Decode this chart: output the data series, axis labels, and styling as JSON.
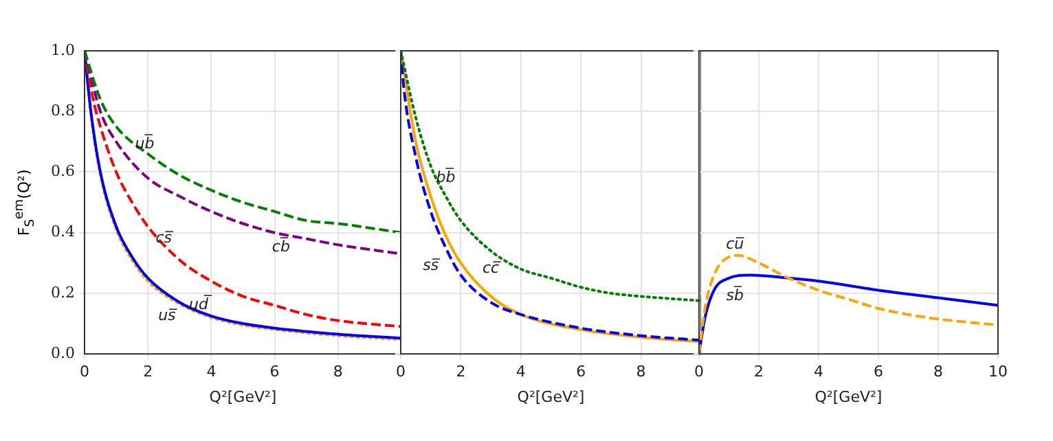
{
  "chart_data": [
    {
      "type": "line",
      "xlabel": "Q²[GeV²]",
      "ylabel": "F$_{S}$$^{em}$(Q²)",
      "xlim": [
        0,
        10
      ],
      "xticks": [
        0,
        2,
        4,
        6,
        8
      ],
      "ylim": [
        0,
        1
      ],
      "yticks": [
        {
          "value": 0,
          "label": "0.0"
        },
        0.2,
        0.4,
        0.6,
        0.8,
        {
          "value": 1,
          "label": "1.0"
        }
      ],
      "grid": true,
      "legend": false,
      "marker": "none",
      "series": [
        {
          "color": "#008000",
          "line_style": "dashed",
          "x": [
            0,
            0.5,
            1,
            2,
            3,
            4,
            5,
            6,
            7,
            8,
            10
          ],
          "values": [
            1.0,
            0.84,
            0.75,
            0.66,
            0.59,
            0.54,
            0.5,
            0.47,
            0.44,
            0.43,
            0.4
          ]
        },
        {
          "color": "#800080",
          "line_style": "dashed",
          "x": [
            0,
            0.5,
            1,
            2,
            3,
            4,
            5,
            6,
            7,
            8,
            10
          ],
          "values": [
            1.0,
            0.8,
            0.7,
            0.58,
            0.52,
            0.47,
            0.43,
            0.4,
            0.38,
            0.36,
            0.33
          ]
        },
        {
          "color": "#ff0000",
          "line_style": "dashed",
          "x": [
            0,
            0.25,
            0.5,
            1,
            1.5,
            2,
            3,
            4,
            5,
            6,
            7,
            8,
            10
          ],
          "values": [
            1.0,
            0.85,
            0.75,
            0.6,
            0.5,
            0.42,
            0.31,
            0.24,
            0.19,
            0.16,
            0.13,
            0.11,
            0.09
          ]
        },
        {
          "color": "#0000ff",
          "line_style": "solid",
          "x": [
            0,
            0.2,
            0.5,
            1,
            1.5,
            2,
            3,
            4,
            5,
            6,
            8,
            10
          ],
          "values": [
            1.0,
            0.8,
            0.6,
            0.42,
            0.32,
            0.25,
            0.17,
            0.125,
            0.1,
            0.085,
            0.065,
            0.052
          ]
        },
        {
          "color": "#ffa500",
          "line_style": "dotted",
          "x": [
            0,
            0.2,
            0.5,
            1,
            1.5,
            2,
            3,
            4,
            5,
            6,
            8,
            10
          ],
          "values": [
            1.0,
            0.79,
            0.59,
            0.41,
            0.31,
            0.24,
            0.165,
            0.12,
            0.095,
            0.08,
            0.06,
            0.047
          ]
        }
      ],
      "annotations": [
        "ub̅",
        "cb̅",
        "cs̅",
        "ud̅",
        "us̅"
      ]
    },
    {
      "type": "line",
      "xlabel": "Q²[GeV²]",
      "xlim": [
        0,
        10
      ],
      "xticks": [
        0,
        2,
        4,
        6,
        8
      ],
      "ylim": [
        0,
        1
      ],
      "tick_labels": "x",
      "grid": true,
      "legend": false,
      "marker": "none",
      "series": [
        {
          "color": "#008000",
          "line_style": "dotted",
          "x": [
            0,
            0.5,
            1,
            1.5,
            2,
            3,
            4,
            5,
            6,
            7,
            8,
            10
          ],
          "values": [
            1.0,
            0.78,
            0.62,
            0.52,
            0.44,
            0.34,
            0.28,
            0.25,
            0.22,
            0.2,
            0.19,
            0.175
          ]
        },
        {
          "color": "#0000ff",
          "line_style": "dashed",
          "x": [
            0,
            0.1,
            0.5,
            1,
            1.5,
            2,
            3,
            4,
            6,
            8,
            10
          ],
          "values": [
            1.0,
            0.88,
            0.65,
            0.47,
            0.35,
            0.26,
            0.17,
            0.13,
            0.085,
            0.06,
            0.045
          ]
        },
        {
          "color": "#ffa500",
          "line_style": "solid",
          "x": [
            0,
            0.5,
            1,
            1.5,
            2,
            3,
            4,
            6,
            8,
            10
          ],
          "values": [
            1.0,
            0.7,
            0.52,
            0.39,
            0.3,
            0.19,
            0.13,
            0.08,
            0.055,
            0.04
          ]
        }
      ],
      "annotations": [
        "bb̅",
        "ss̅",
        "cc̅"
      ]
    },
    {
      "type": "line",
      "xlabel": "Q²[GeV²]",
      "xlim": [
        0,
        10
      ],
      "xticks": [
        0,
        2,
        4,
        6,
        8,
        10
      ],
      "ylim": [
        0,
        1
      ],
      "tick_labels": "x",
      "grid": true,
      "legend": false,
      "marker": "none",
      "series": [
        {
          "color": "#ffa500",
          "line_style": "dashed",
          "x": [
            0,
            0.2,
            0.5,
            1,
            1.3,
            2,
            3,
            4,
            5,
            6,
            7,
            8,
            10
          ],
          "values": [
            0,
            0.15,
            0.26,
            0.32,
            0.325,
            0.3,
            0.25,
            0.21,
            0.18,
            0.15,
            0.13,
            0.115,
            0.095
          ]
        },
        {
          "color": "#0000ff",
          "line_style": "solid",
          "x": [
            0,
            0.2,
            0.5,
            1,
            1.7,
            3,
            4,
            6,
            8,
            10
          ],
          "values": [
            0,
            0.12,
            0.21,
            0.25,
            0.26,
            0.25,
            0.24,
            0.21,
            0.185,
            0.16
          ]
        }
      ],
      "annotations": [
        "cu̅",
        "sb̅"
      ]
    }
  ]
}
